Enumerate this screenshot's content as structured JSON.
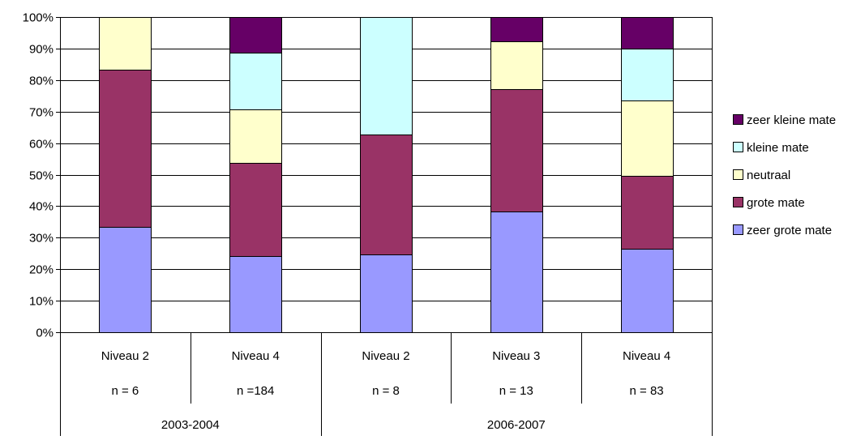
{
  "chart_data": {
    "type": "bar",
    "stacked": "percent",
    "categories": [
      {
        "label": "Niveau 2",
        "n": "n = 6"
      },
      {
        "label": "Niveau 4",
        "n": "n =184"
      },
      {
        "label": "Niveau 2",
        "n": "n = 8"
      },
      {
        "label": "Niveau 3",
        "n": "n = 13"
      },
      {
        "label": "Niveau 4",
        "n": "n = 83"
      }
    ],
    "groups": [
      {
        "label": "2003-2004",
        "span": [
          0,
          1
        ]
      },
      {
        "label": "2006-2007",
        "span": [
          2,
          4
        ]
      }
    ],
    "series": [
      {
        "name": "zeer grote mate",
        "color": "#9999ff",
        "values": [
          33.3,
          24.2,
          24.6,
          38.2,
          26.5
        ]
      },
      {
        "name": "grote mate",
        "color": "#993366",
        "values": [
          50.0,
          29.6,
          38.1,
          39.0,
          23.0
        ]
      },
      {
        "name": "neutraal",
        "color": "#ffffcc",
        "values": [
          16.7,
          16.8,
          0,
          15.2,
          23.9
        ]
      },
      {
        "name": "kleine mate",
        "color": "#ccffff",
        "values": [
          0,
          18.2,
          37.3,
          0,
          16.7
        ]
      },
      {
        "name": "zeer kleine mate",
        "color": "#660066",
        "values": [
          0,
          11.2,
          0,
          7.6,
          9.9
        ]
      }
    ],
    "y_ticks": [
      "0%",
      "10%",
      "20%",
      "30%",
      "40%",
      "50%",
      "60%",
      "70%",
      "80%",
      "90%",
      "100%"
    ],
    "ylim": [
      0,
      100
    ],
    "grid": true,
    "legend_position": "right",
    "legend_order": "reverse"
  }
}
